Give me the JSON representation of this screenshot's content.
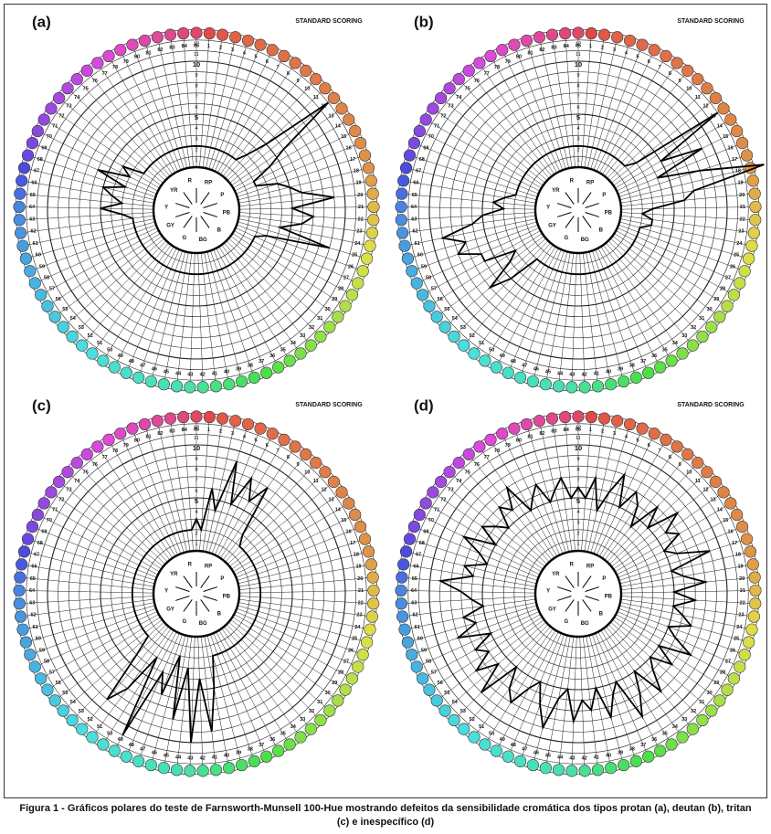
{
  "figure": {
    "caption_line1": "Figura 1 - Gráficos polares do teste de Farnsworth-Munsell 100-Hue mostrando defeitos da sensibilidade cromática dos tipos protan (a), deutan (b), tritan",
    "caption_line2": "(c) e inespecífico (d)"
  },
  "chart_data": [
    {
      "type": "polar-line",
      "panel_label": "(a)",
      "scoring_label": "STANDARD SCORING",
      "cap_labels": [
        "1",
        "2",
        "3",
        "4",
        "5",
        "6",
        "7",
        "8",
        "9",
        "10",
        "11",
        "12",
        "13",
        "14",
        "15",
        "16",
        "17",
        "18",
        "19",
        "20",
        "21",
        "22",
        "23",
        "24",
        "25",
        "26",
        "27",
        "28",
        "29",
        "30",
        "31",
        "32",
        "33",
        "34",
        "35",
        "36",
        "37",
        "38",
        "39",
        "40",
        "41",
        "42",
        "43",
        "44",
        "45",
        "46",
        "47",
        "48",
        "49",
        "50",
        "51",
        "52",
        "53",
        "54",
        "55",
        "56",
        "57",
        "58",
        "59",
        "60",
        "61",
        "62",
        "63",
        "64",
        "65",
        "66",
        "67",
        "68",
        "69",
        "70",
        "71",
        "72",
        "73",
        "74",
        "75",
        "76",
        "77",
        "78",
        "79",
        "80",
        "81",
        "82",
        "83",
        "84",
        "85"
      ],
      "radial_ticks": [
        "1",
        "2",
        "3",
        "4",
        "5",
        "6",
        "7",
        "8",
        "9",
        "10",
        "11",
        "12",
        "13"
      ],
      "hue_labels": [
        "R",
        "RP",
        "P",
        "PB",
        "B",
        "BG",
        "G",
        "GY",
        "Y",
        "YR"
      ],
      "scores": [
        2,
        2,
        2,
        2,
        2,
        2,
        2,
        2,
        2,
        3,
        5,
        12,
        6,
        4,
        2,
        2,
        4,
        5,
        6,
        9,
        5,
        7,
        6,
        4,
        9,
        3,
        2,
        2,
        2,
        2,
        2,
        2,
        2,
        2,
        2,
        2,
        2,
        2,
        2,
        2,
        2,
        2,
        2,
        2,
        2,
        2,
        2,
        2,
        2,
        2,
        2,
        2,
        2,
        2,
        2,
        2,
        2,
        2,
        2,
        2,
        2,
        2,
        3,
        5,
        3,
        4,
        5,
        3,
        6,
        3,
        4,
        2,
        2,
        2,
        2,
        2,
        2,
        2,
        2,
        2,
        2,
        2,
        2,
        2,
        2
      ]
    },
    {
      "type": "polar-line",
      "panel_label": "(b)",
      "scoring_label": "STANDARD SCORING",
      "cap_labels": [
        "1",
        "2",
        "3",
        "4",
        "5",
        "6",
        "7",
        "8",
        "9",
        "10",
        "11",
        "12",
        "13",
        "14",
        "15",
        "16",
        "17",
        "18",
        "19",
        "20",
        "21",
        "22",
        "23",
        "24",
        "25",
        "26",
        "27",
        "28",
        "29",
        "30",
        "31",
        "32",
        "33",
        "34",
        "35",
        "36",
        "37",
        "38",
        "39",
        "40",
        "41",
        "42",
        "43",
        "44",
        "45",
        "46",
        "47",
        "48",
        "49",
        "50",
        "51",
        "52",
        "53",
        "54",
        "55",
        "56",
        "57",
        "58",
        "59",
        "60",
        "61",
        "62",
        "63",
        "64",
        "65",
        "66",
        "67",
        "68",
        "69",
        "70",
        "71",
        "72",
        "73",
        "74",
        "75",
        "76",
        "77",
        "78",
        "79",
        "80",
        "81",
        "82",
        "83",
        "84",
        "85"
      ],
      "radial_ticks": [
        "1",
        "2",
        "3",
        "4",
        "5",
        "6",
        "7",
        "8",
        "9",
        "10",
        "11",
        "12",
        "13"
      ],
      "hue_labels": [
        "R",
        "RP",
        "P",
        "PB",
        "B",
        "BG",
        "G",
        "GY",
        "Y",
        "YR"
      ],
      "scores": [
        2,
        2,
        2,
        2,
        2,
        2,
        2,
        2,
        2,
        2,
        2,
        3,
        12,
        5,
        9,
        4,
        8,
        14,
        7,
        6,
        3,
        2,
        3,
        3,
        2,
        2,
        2,
        2,
        2,
        2,
        2,
        2,
        2,
        2,
        2,
        2,
        2,
        2,
        2,
        2,
        2,
        2,
        2,
        2,
        2,
        2,
        2,
        2,
        2,
        2,
        2,
        2,
        5,
        7,
        4,
        3,
        6,
        6,
        8,
        7,
        9,
        6,
        5,
        3,
        4,
        3,
        2,
        2,
        2,
        2,
        2,
        2,
        2,
        2,
        2,
        2,
        2,
        2,
        2,
        2,
        2,
        2,
        2,
        2,
        2
      ]
    },
    {
      "type": "polar-line",
      "panel_label": "(c)",
      "scoring_label": "STANDARD SCORING",
      "cap_labels": [
        "1",
        "2",
        "3",
        "4",
        "5",
        "6",
        "7",
        "8",
        "9",
        "10",
        "11",
        "12",
        "13",
        "14",
        "15",
        "16",
        "17",
        "18",
        "19",
        "20",
        "21",
        "22",
        "23",
        "24",
        "25",
        "26",
        "27",
        "28",
        "29",
        "30",
        "31",
        "32",
        "33",
        "34",
        "35",
        "36",
        "37",
        "38",
        "39",
        "40",
        "41",
        "42",
        "43",
        "44",
        "45",
        "46",
        "47",
        "48",
        "49",
        "50",
        "51",
        "52",
        "53",
        "54",
        "55",
        "56",
        "57",
        "58",
        "59",
        "60",
        "61",
        "62",
        "63",
        "64",
        "65",
        "66",
        "67",
        "68",
        "69",
        "70",
        "71",
        "72",
        "73",
        "74",
        "75",
        "76",
        "77",
        "78",
        "79",
        "80",
        "81",
        "82",
        "83",
        "84",
        "85"
      ],
      "radial_ticks": [
        "1",
        "2",
        "3",
        "4",
        "5",
        "6",
        "7",
        "8",
        "9",
        "10",
        "11",
        "12",
        "13"
      ],
      "hue_labels": [
        "R",
        "RP",
        "P",
        "PB",
        "B",
        "BG",
        "G",
        "GY",
        "Y",
        "YR"
      ],
      "scores": [
        2,
        6,
        4,
        9,
        5,
        8,
        6,
        8,
        3,
        2,
        2,
        2,
        2,
        2,
        2,
        2,
        2,
        2,
        2,
        2,
        2,
        2,
        2,
        2,
        2,
        2,
        2,
        2,
        2,
        2,
        2,
        2,
        2,
        2,
        2,
        2,
        2,
        2,
        2,
        5,
        9,
        4,
        10,
        3,
        8,
        2,
        6,
        4,
        11,
        3,
        7,
        9,
        4,
        2,
        2,
        2,
        2,
        2,
        2,
        2,
        2,
        2,
        2,
        2,
        2,
        2,
        2,
        2,
        2,
        2,
        2,
        2,
        2,
        2,
        2,
        2,
        2,
        2,
        2,
        2,
        2,
        2,
        2,
        2,
        3
      ]
    },
    {
      "type": "polar-line",
      "panel_label": "(d)",
      "scoring_label": "STANDARD SCORING",
      "cap_labels": [
        "1",
        "2",
        "3",
        "4",
        "5",
        "6",
        "7",
        "8",
        "9",
        "10",
        "11",
        "12",
        "13",
        "14",
        "15",
        "16",
        "17",
        "18",
        "19",
        "20",
        "21",
        "22",
        "23",
        "24",
        "25",
        "26",
        "27",
        "28",
        "29",
        "30",
        "31",
        "32",
        "33",
        "34",
        "35",
        "36",
        "37",
        "38",
        "39",
        "40",
        "41",
        "42",
        "43",
        "44",
        "45",
        "46",
        "47",
        "48",
        "49",
        "50",
        "51",
        "52",
        "53",
        "54",
        "55",
        "56",
        "57",
        "58",
        "59",
        "60",
        "61",
        "62",
        "63",
        "64",
        "65",
        "66",
        "67",
        "68",
        "69",
        "70",
        "71",
        "72",
        "73",
        "74",
        "75",
        "76",
        "77",
        "78",
        "79",
        "80",
        "81",
        "82",
        "83",
        "84",
        "85"
      ],
      "radial_ticks": [
        "1",
        "2",
        "3",
        "4",
        "5",
        "6",
        "7",
        "8",
        "9",
        "10",
        "11",
        "12",
        "13"
      ],
      "hue_labels": [
        "R",
        "RP",
        "P",
        "PB",
        "B",
        "BG",
        "G",
        "GY",
        "Y",
        "YR"
      ],
      "scores": [
        5,
        7,
        4,
        6,
        8,
        5,
        7,
        6,
        4,
        7,
        5,
        8,
        6,
        7,
        5,
        6,
        9,
        5,
        6,
        8,
        5,
        7,
        5,
        6,
        7,
        5,
        6,
        8,
        5,
        7,
        5,
        6,
        8,
        5,
        7,
        9,
        5,
        6,
        8,
        5,
        7,
        6,
        8,
        5,
        6,
        9,
        7,
        5,
        6,
        8,
        7,
        5,
        9,
        6,
        8,
        6,
        7,
        5,
        8,
        6,
        7,
        5,
        6,
        7,
        9,
        6,
        7,
        5,
        6,
        8,
        5,
        7,
        6,
        5,
        7,
        6,
        8,
        5,
        6,
        7,
        5,
        6,
        7,
        5,
        6
      ]
    }
  ]
}
